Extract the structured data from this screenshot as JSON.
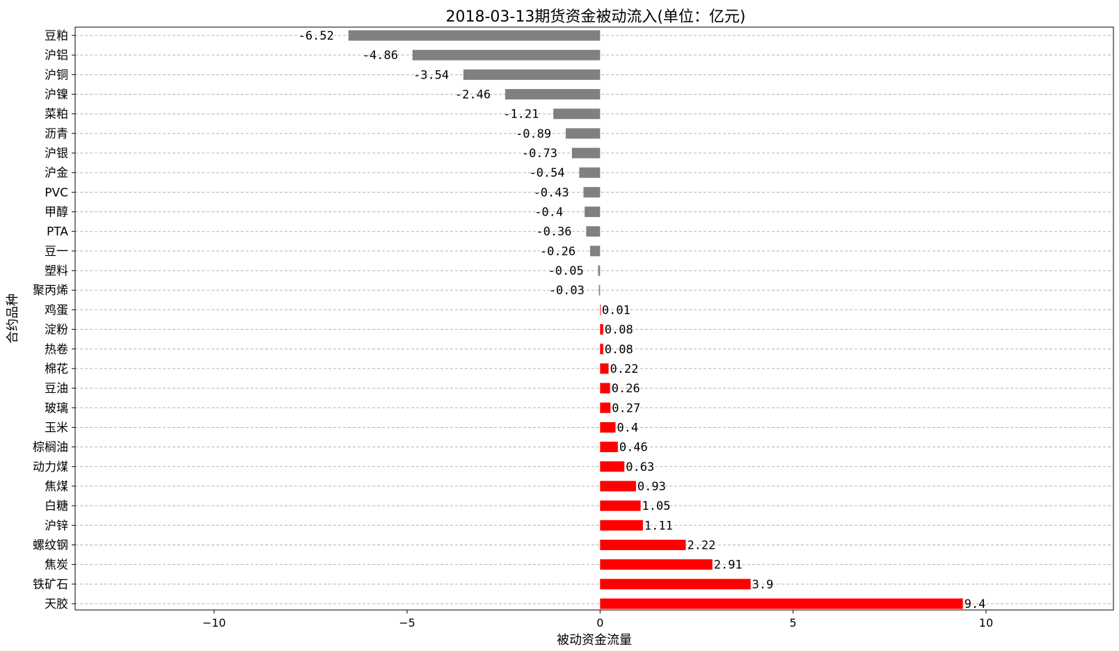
{
  "chart_data": {
    "type": "bar",
    "orientation": "horizontal",
    "title": "2018-03-13期货资金被动流入(单位：亿元)",
    "xlabel": "被动资金流量",
    "ylabel": "合约品种",
    "xlim": [
      -13.6,
      13.3
    ],
    "xticks": [
      -10,
      -5,
      0,
      5,
      10
    ],
    "xtick_labels": [
      "−10",
      "−5",
      "0",
      "5",
      "10"
    ],
    "grid": "horizontal dashed",
    "colors": {
      "negative": "#808080",
      "positive": "#ff0000"
    },
    "categories": [
      "豆粕",
      "沪铝",
      "沪铜",
      "沪镍",
      "菜粕",
      "沥青",
      "沪银",
      "沪金",
      "PVC",
      "甲醇",
      "PTA",
      "豆一",
      "塑料",
      "聚丙烯",
      "鸡蛋",
      "淀粉",
      "热卷",
      "棉花",
      "豆油",
      "玻璃",
      "玉米",
      "棕榈油",
      "动力煤",
      "焦煤",
      "白糖",
      "沪锌",
      "螺纹钢",
      "焦炭",
      "铁矿石",
      "天胶"
    ],
    "values": [
      -6.52,
      -4.86,
      -3.54,
      -2.46,
      -1.21,
      -0.89,
      -0.73,
      -0.54,
      -0.43,
      -0.4,
      -0.36,
      -0.26,
      -0.05,
      -0.03,
      0.01,
      0.08,
      0.08,
      0.22,
      0.26,
      0.27,
      0.4,
      0.46,
      0.63,
      0.93,
      1.05,
      1.11,
      2.22,
      2.91,
      3.9,
      9.4
    ],
    "value_labels": [
      "-6.52",
      "-4.86",
      "-3.54",
      "-2.46",
      "-1.21",
      "-0.89",
      "-0.73",
      "-0.54",
      "-0.43",
      "-0.4",
      "-0.36",
      "-0.26",
      "-0.05",
      "-0.03",
      "0.01",
      "0.08",
      "0.08",
      "0.22",
      "0.26",
      "0.27",
      "0.4",
      "0.46",
      "0.63",
      "0.93",
      "1.05",
      "1.11",
      "2.22",
      "2.91",
      "3.9",
      "9.4"
    ]
  }
}
